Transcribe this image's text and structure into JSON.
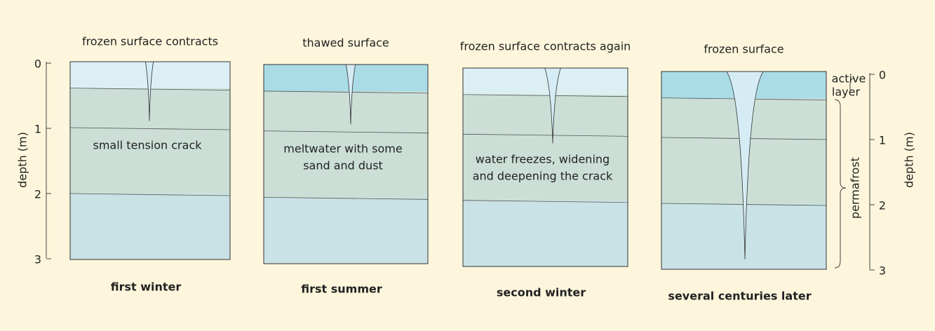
{
  "panels": [
    {
      "top": "frozen surface contracts",
      "caption": [
        "small tension crack"
      ],
      "bottom": "first winter"
    },
    {
      "top": "thawed surface",
      "caption": [
        "meltwater with some",
        "sand and dust"
      ],
      "bottom": "first summer"
    },
    {
      "top": "frozen surface contracts again",
      "caption": [
        "water freezes, widening",
        "and deepening the crack"
      ],
      "bottom": "second winter"
    },
    {
      "top": "frozen surface",
      "bottom": "several centuries later"
    }
  ],
  "left_axis": {
    "label": "depth (m)",
    "ticks": [
      0,
      1,
      2,
      3
    ]
  },
  "right_axis": {
    "label": "depth (m)",
    "ticks": [
      0,
      1,
      2,
      3
    ]
  },
  "active_layer": [
    "active",
    "layer"
  ],
  "permafrost": "permafrost"
}
